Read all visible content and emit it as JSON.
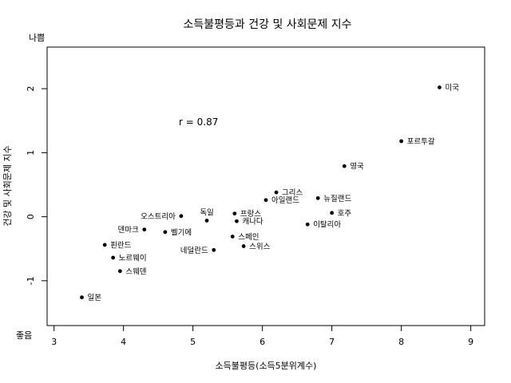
{
  "chart_data": {
    "type": "scatter",
    "title": "소득불평등과 건강 및 사회문제 지수",
    "xlabel": "소득불평등(소득5분위계수)",
    "ylabel": "건강 및 사회문제 지수",
    "xlim": [
      2.9,
      9.2
    ],
    "ylim": [
      -1.7,
      2.65
    ],
    "xticks": [
      3,
      4,
      5,
      6,
      7,
      8,
      9
    ],
    "yticks": [
      -1,
      0,
      1,
      2
    ],
    "grid": false,
    "annotation": "r = 0.87",
    "y_top_label": "나쁨",
    "y_bottom_label": "좋음",
    "points": [
      {
        "label": "미국",
        "x": 8.55,
        "y": 2.02
      },
      {
        "label": "포르투갈",
        "x": 8.0,
        "y": 1.18
      },
      {
        "label": "영국",
        "x": 7.18,
        "y": 0.79
      },
      {
        "label": "그리스",
        "x": 6.2,
        "y": 0.38
      },
      {
        "label": "아일랜드",
        "x": 6.05,
        "y": 0.26
      },
      {
        "label": "뉴질랜드",
        "x": 6.8,
        "y": 0.29
      },
      {
        "label": "호주",
        "x": 7.0,
        "y": 0.06
      },
      {
        "label": "이탈리아",
        "x": 6.65,
        "y": -0.12
      },
      {
        "label": "프랑스",
        "x": 5.6,
        "y": 0.05
      },
      {
        "label": "캐나다",
        "x": 5.63,
        "y": -0.07
      },
      {
        "label": "독일",
        "x": 5.2,
        "y": -0.06
      },
      {
        "label": "오스트리아",
        "x": 4.83,
        "y": 0.01
      },
      {
        "label": "벨기에",
        "x": 4.6,
        "y": -0.24
      },
      {
        "label": "덴마크",
        "x": 4.3,
        "y": -0.2
      },
      {
        "label": "스페인",
        "x": 5.57,
        "y": -0.31
      },
      {
        "label": "스위스",
        "x": 5.73,
        "y": -0.46
      },
      {
        "label": "네덜란드",
        "x": 5.3,
        "y": -0.52
      },
      {
        "label": "핀란드",
        "x": 3.73,
        "y": -0.44
      },
      {
        "label": "노르웨이",
        "x": 3.85,
        "y": -0.64
      },
      {
        "label": "스웨덴",
        "x": 3.95,
        "y": -0.85
      },
      {
        "label": "일본",
        "x": 3.4,
        "y": -1.26
      }
    ]
  }
}
